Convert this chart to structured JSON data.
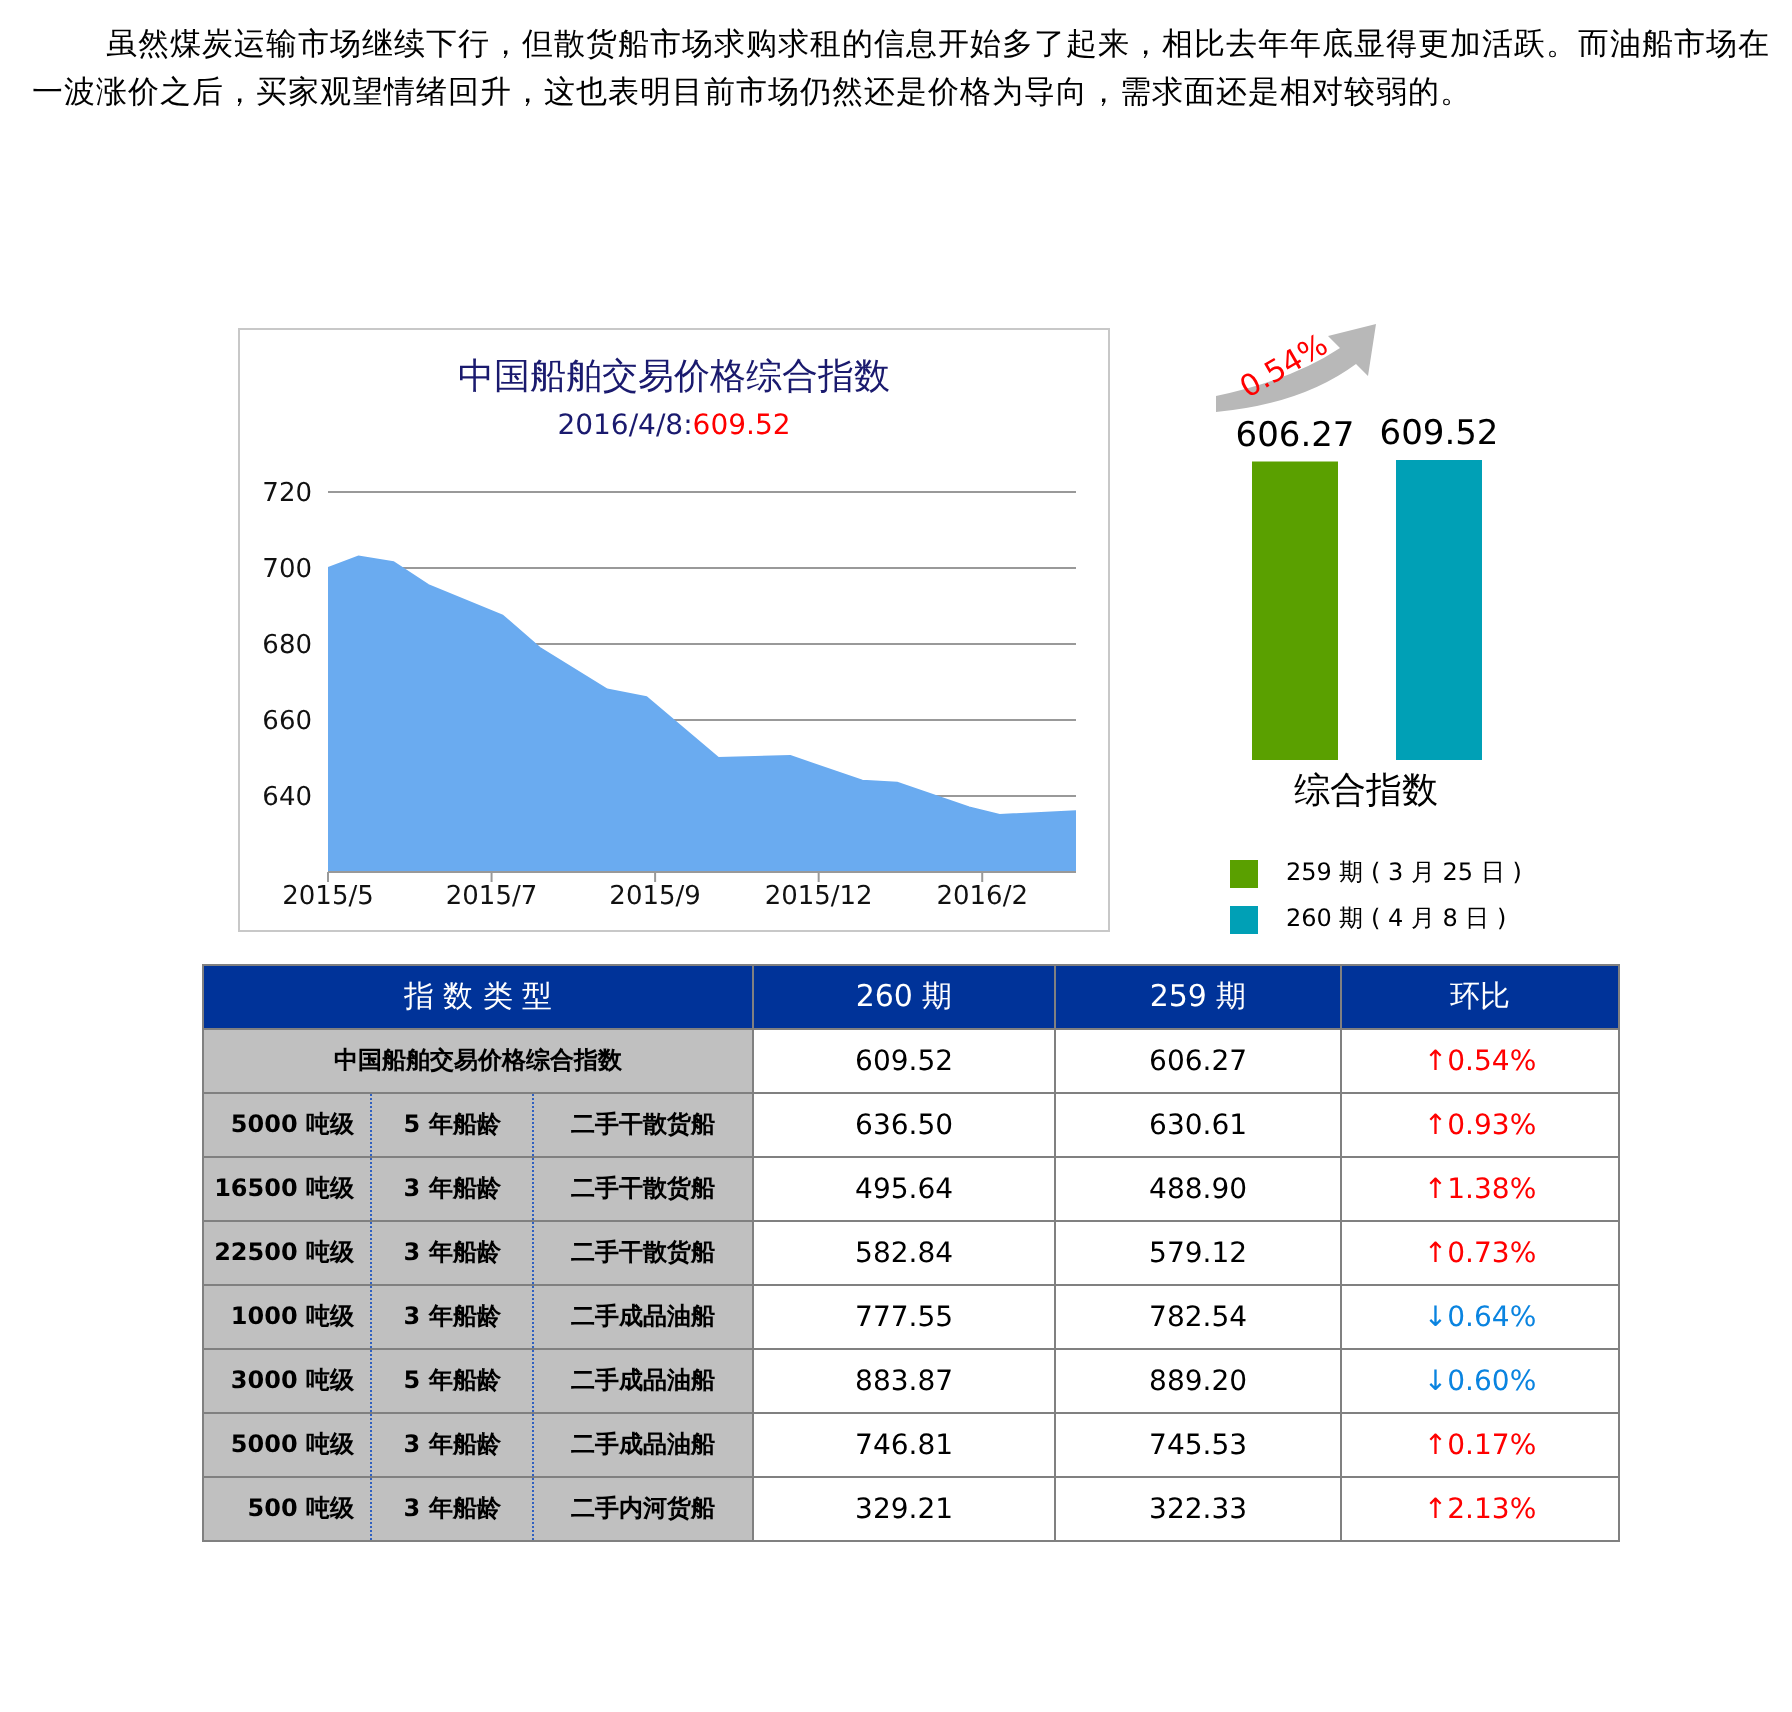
{
  "chart_data": [
    {
      "type": "other",
      "annotations": [
        "虽然煤炭运输市场继续下行，但散货船市场求购求租的信息开始多了起来，相比去年年底显得更加活跃。而油船市场在一波涨价之后，买家观望情绪回升，这也表明目前市场仍然还是价格为导向，需求面还是相对较弱的。"
      ]
    },
    {
      "type": "area",
      "title": "中国船舶交易价格综合指数",
      "subtitle": "2016/4/8:609.52",
      "x": [
        "2015-05-01",
        "2015-05-15",
        "2015-05-31",
        "2015-06-16",
        "2015-07-20",
        "2015-08-06",
        "2015-09-06",
        "2015-09-24",
        "2015-10-27",
        "2015-11-29",
        "2016-01-01",
        "2016-01-17",
        "2016-02-19",
        "2016-03-04",
        "2016-04-08"
      ],
      "values": [
        700,
        703,
        701.5,
        695.5,
        687.5,
        679,
        668,
        666,
        650,
        650.5,
        644,
        643.5,
        637,
        635,
        636
      ],
      "color": "#6aabf0",
      "xlim": [
        "2015-05-01",
        "2016-04-08"
      ],
      "xticks": [
        {
          "value": "2015-05-01",
          "label": "2015/5"
        },
        {
          "value": "2015-07-15",
          "label": "2015/7"
        },
        {
          "value": "2015-09-28",
          "label": "2015/9"
        },
        {
          "value": "2015-12-12",
          "label": "2015/12"
        },
        {
          "value": "2016-02-25",
          "label": "2016/2"
        }
      ],
      "ylim": [
        620,
        720
      ],
      "yticks": [
        640,
        660,
        680,
        700,
        720
      ],
      "grid": "y"
    },
    {
      "type": "bar",
      "categories": [
        "综合指数"
      ],
      "series": [
        {
          "name": "259 期 ( 3 月 25 日 )",
          "color": "#5aa000",
          "values": [
            606.27
          ]
        },
        {
          "name": "260 期 ( 4 月 8 日 )",
          "color": "#00a0b6",
          "values": [
            609.52
          ]
        }
      ],
      "tick_labels": "x",
      "data_labels": true,
      "legend": "bottom",
      "annotations": [
        "0.54%"
      ]
    },
    {
      "type": "other",
      "categories": [
        "指 数 类 型",
        "260 期",
        "259 期",
        "环比"
      ],
      "cell_labels": [
        [
          "中国船舶交易价格综合指数",
          "609.52",
          "606.27",
          "↑0.54%"
        ],
        [
          "5000 吨级",
          "5 年船龄",
          "二手干散货船",
          "636.50",
          "630.61",
          "↑0.93%"
        ],
        [
          "16500 吨级",
          "3 年船龄",
          "二手干散货船",
          "495.64",
          "488.90",
          "↑1.38%"
        ],
        [
          "22500 吨级",
          "3 年船龄",
          "二手干散货船",
          "582.84",
          "579.12",
          "↑0.73%"
        ],
        [
          "1000 吨级",
          "3 年船龄",
          "二手成品油船",
          "777.55",
          "782.54",
          "↓0.64%"
        ],
        [
          "3000 吨级",
          "5 年船龄",
          "二手成品油船",
          "883.87",
          "889.20",
          "↓0.60%"
        ],
        [
          "5000 吨级",
          "3 年船龄",
          "二手成品油船",
          "746.81",
          "745.53",
          "↑0.17%"
        ],
        [
          "500 吨级",
          "3 年船龄",
          "二手内河货船",
          "329.21",
          "322.33",
          "↑2.13%"
        ]
      ]
    }
  ]
}
